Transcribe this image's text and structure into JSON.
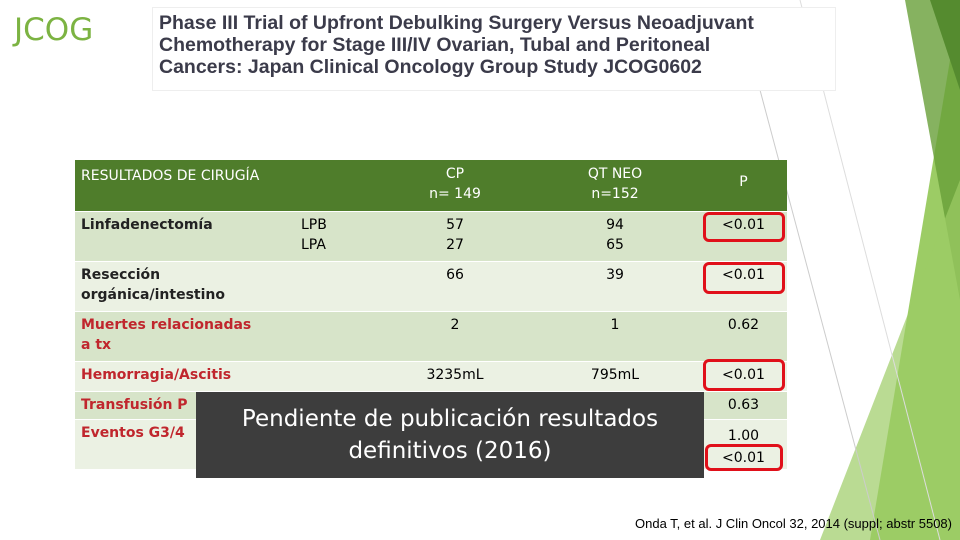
{
  "header": {
    "logo": "JCOG",
    "title_lines": [
      "Phase III Trial of Upfront Debulking Surgery Versus Neoadjuvant",
      "Chemotherapy for Stage III/IV Ovarian, Tubal and Peritoneal",
      "Cancers: Japan Clinical Oncology Group Study JCOG0602"
    ]
  },
  "table": {
    "header": [
      "RESULTADOS DE CIRUGÍA",
      "CP\nn= 149",
      "QT NEO\nn=152",
      "P"
    ],
    "rows": [
      [
        "Linfadenectomía",
        "LPB\nLPA",
        "57\n27",
        "94\n65",
        "<0.01"
      ],
      [
        "Resección\norgánica/intestino",
        "",
        "66",
        "39",
        "<0.01"
      ],
      [
        "Muertes relacionadas\na tx",
        "",
        "2",
        "1",
        "0.62"
      ],
      [
        "Hemorragia/Ascitis",
        "",
        "3235mL",
        "795mL",
        "<0.01"
      ],
      [
        "Transfusión P",
        "",
        "",
        "",
        "0.63"
      ],
      [
        "Eventos G3/4",
        "",
        "",
        "",
        "1.00\n<0.01"
      ]
    ]
  },
  "overlay": [
    "Pendiente de publicación resultados",
    "definitivos (2016)"
  ],
  "citation": "Onda T, et al. J Clin Oncol 32, 2014 (suppl; abstr 5508)"
}
